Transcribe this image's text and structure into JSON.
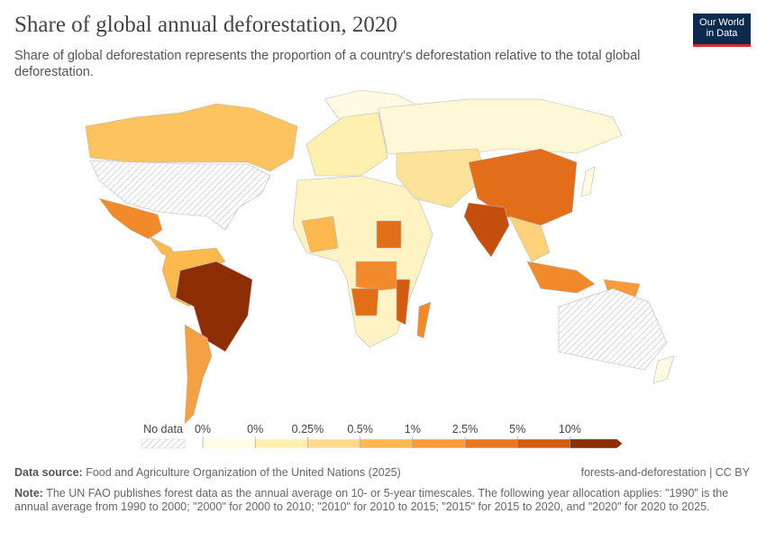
{
  "header": {
    "title": "Share of global annual deforestation, 2020",
    "subtitle": "Share of global deforestation represents the proportion of a country's deforestation relative to the total global deforestation.",
    "logo": [
      "Our World",
      "in Data"
    ]
  },
  "legend": {
    "no_data": "No data",
    "labels": [
      "0%",
      "0%",
      "0.25%",
      "0.5%",
      "1%",
      "2.5%",
      "5%",
      "10%"
    ],
    "colors": [
      "#fffbe3",
      "#fff0b0",
      "#fed98e",
      "#fdb94e",
      "#fd9a38",
      "#ec7620",
      "#d35a0f",
      "#8c2d04"
    ]
  },
  "footer": {
    "source_label": "Data source:",
    "source": "Food and Agriculture Organization of the United Nations (2025)",
    "slug": "forests-and-deforestation | CC BY",
    "note_label": "Note:",
    "note": "The UN FAO publishes forest data as the annual average on 10- or 5-year timescales. The following year allocation applies: \"1990\" is the annual average from 1990 to 2000; \"2000\" for 2000 to 2010; \"2010\" for 2010 to 2015; \"2015\" for 2015 to 2020, and \"2020\" for 2020 to 2025."
  }
}
